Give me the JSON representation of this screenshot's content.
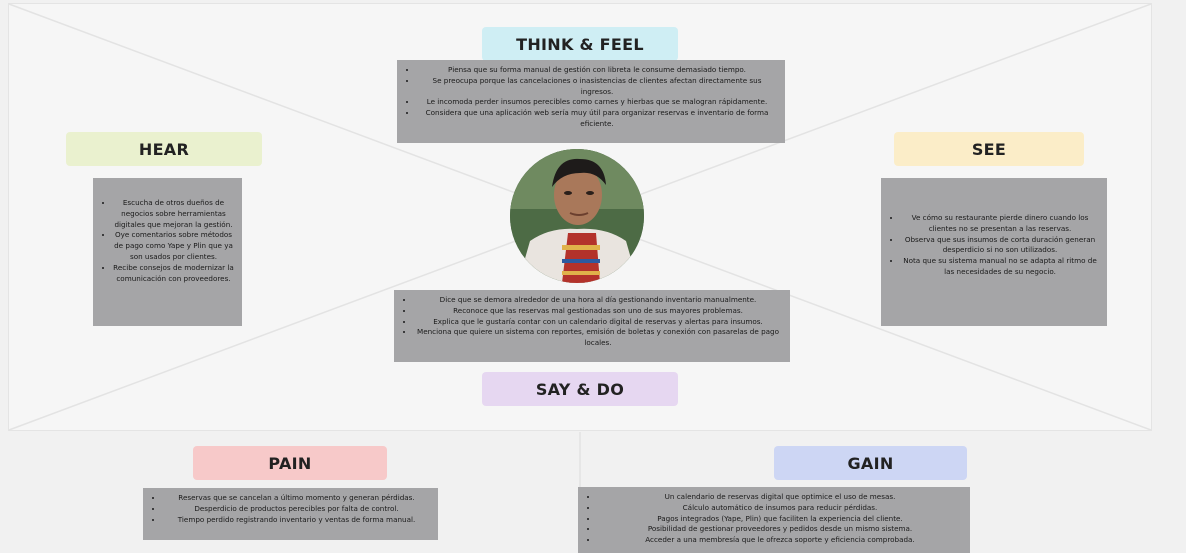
{
  "colors": {
    "think_feel": "#cfeef4",
    "hear": "#eaf1cf",
    "see": "#fbedc8",
    "say_do": "#e6d7f1",
    "pain": "#f7c9c9",
    "gain": "#cdd6f4",
    "note": "#a5a5a7"
  },
  "think_feel": {
    "title": "THINK & FEEL",
    "items": [
      "Piensa que su forma manual de gestión con libreta le consume demasiado tiempo.",
      "Se preocupa porque las cancelaciones o inasistencias de clientes afectan directamente sus ingresos.",
      "Le incomoda perder insumos perecibles como carnes y hierbas que se malogran rápidamente.",
      "Considera que una aplicación web sería muy útil para organizar reservas e inventario de forma eficiente."
    ]
  },
  "hear": {
    "title": "HEAR",
    "items": [
      "Escucha de otros dueños de negocios sobre herramientas digitales que mejoran la gestión.",
      "Oye comentarios sobre métodos de pago como Yape y Plin que ya son usados por clientes.",
      "Recibe consejos de modernizar la comunicación con proveedores."
    ]
  },
  "see": {
    "title": "SEE",
    "items": [
      "Ve cómo su restaurante pierde dinero cuando los clientes no se presentan a las reservas.",
      "Observa que sus insumos de corta duración generan desperdicio si no son utilizados.",
      "Nota que su sistema manual no se adapta al ritmo de las necesidades de su negocio."
    ]
  },
  "say_do": {
    "title": "SAY & DO",
    "items": [
      "Dice que se demora alrededor de una hora al día gestionando inventario manualmente.",
      "Reconoce que las reservas mal gestionadas son uno de sus mayores problemas.",
      "Explica que le gustaría contar con un calendario digital de reservas y alertas para insumos.",
      "Menciona que quiere un sistema con reportes, emisión de boletas y conexión con pasarelas de pago locales."
    ]
  },
  "pain": {
    "title": "PAIN",
    "items": [
      "Reservas que se cancelan a último momento y generan pérdidas.",
      "Desperdicio de productos perecibles por falta de control.",
      "Tiempo perdido registrando inventario y ventas de forma manual."
    ]
  },
  "gain": {
    "title": "GAIN",
    "items": [
      "Un calendario de reservas digital que optimice el uso de mesas.",
      "Cálculo automático de insumos para reducir pérdidas.",
      "Pagos integrados (Yape, Plin) que faciliten la experiencia del cliente.",
      "Posibilidad de gestionar proveedores y pedidos desde un mismo sistema.",
      "Acceder a una membresía que le ofrezca soporte y eficiencia comprobada."
    ]
  }
}
